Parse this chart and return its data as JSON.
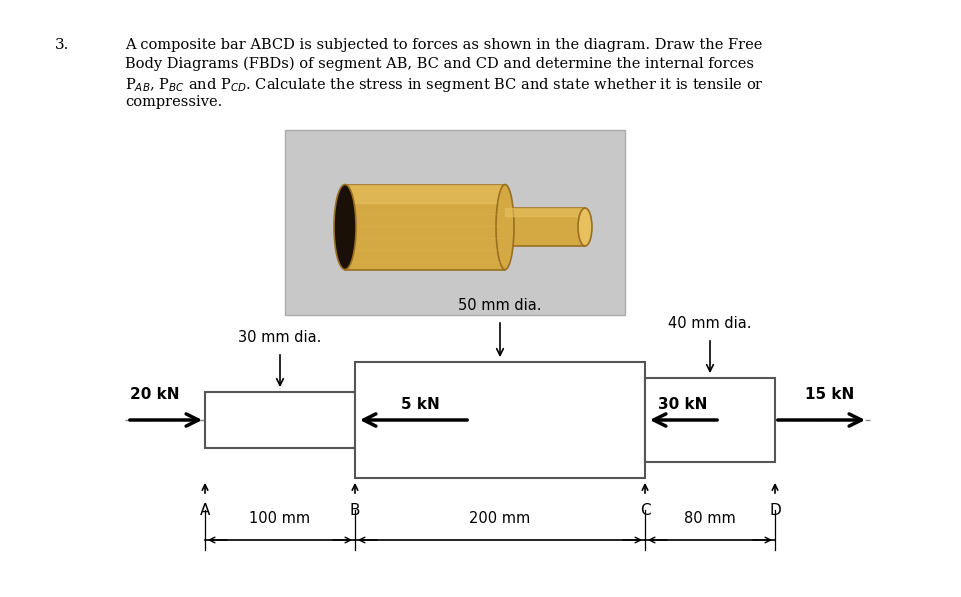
{
  "background_color": "#ffffff",
  "title_number": "3.",
  "text_line1": "A composite bar ABCD is subjected to forces as shown in the diagram. Draw the Free",
  "text_line2": "Body Diagrams (FBDs) of segment AB, BC and CD and determine the internal forces",
  "text_line3": "P$_{AB}$, P$_{BC}$ and P$_{CD}$. Calculate the stress in segment BC and state whether it is tensile or",
  "text_line4": "compressive.",
  "img_box_color": "#c8c8c8",
  "bar_color_main": "#d4a843",
  "bar_color_dark": "#9a7020",
  "bar_color_light": "#e8c060",
  "bar_color_hollow": "#1a1008",
  "dia_30_label": "30 mm dia.",
  "dia_50_label": "50 mm dia.",
  "dia_40_label": "40 mm dia.",
  "label_20kN": "20 kN",
  "label_5kN": "5 kN",
  "label_30kN": "30 kN",
  "label_15kN": "15 kN",
  "label_A": "A",
  "label_B": "B",
  "label_C": "C",
  "label_D": "D",
  "dim_100mm": "100 mm",
  "dim_200mm": "200 mm",
  "dim_80mm": "80 mm",
  "centerline_color": "#888888",
  "force_color": "#000000",
  "rect_edge_color": "#555555"
}
